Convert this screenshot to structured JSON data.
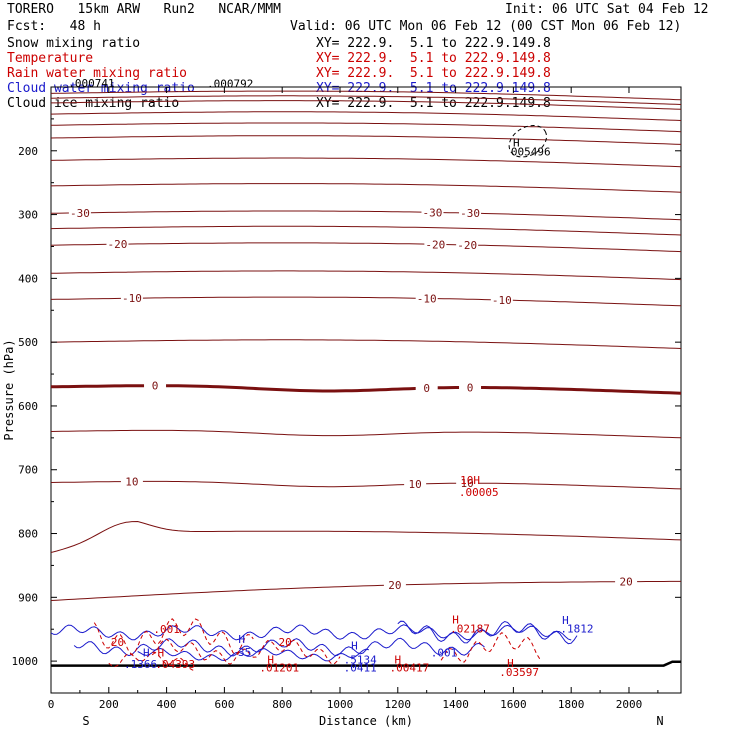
{
  "header": {
    "model": "TORERO   15km ARW   Run2   NCAR/MMM",
    "init": "Init: 06 UTC Sat 04 Feb 12",
    "fcst": "Fcst:   48 h",
    "valid": "Valid: 06 UTC Mon 06 Feb 12 (00 CST Mon 06 Feb 12)"
  },
  "legend": [
    {
      "label": "Snow mixing ratio",
      "xy": "XY= 222.9.  5.1 to 222.9.149.8",
      "color": "#000000"
    },
    {
      "label": "Temperature",
      "xy": "XY= 222.9.  5.1 to 222.9.149.8",
      "color": "#cc0000"
    },
    {
      "label": "Rain water mixing ratio",
      "xy": "XY= 222.9.  5.1 to 222.9.149.8",
      "color": "#cc0000"
    },
    {
      "label": "Cloud water mixing ratio",
      "xy": "XY= 222.9.  5.1 to 222.9.149.8",
      "color": "#1a1acc"
    },
    {
      "label": "Cloud ice mixing ratio",
      "xy": "XY= 222.9.  5.1 to 222.9.149.8",
      "color": "#000000"
    }
  ],
  "chart_data": {
    "type": "line",
    "xlabel": "Distance (km)",
    "ylabel": "Pressure (hPa)",
    "xlim": [
      0,
      2180
    ],
    "ylim": [
      1050,
      100
    ],
    "xticks": [
      0,
      200,
      400,
      600,
      800,
      1000,
      1200,
      1400,
      1600,
      1800,
      2000
    ],
    "yticks": [
      200,
      300,
      400,
      500,
      600,
      700,
      800,
      900,
      1000
    ],
    "x_end_labels": {
      "left": "S",
      "right": "N"
    },
    "temperature_isotherms": [
      {
        "value": -30,
        "p": 298,
        "labels_at": [
          100,
          1320,
          1450
        ]
      },
      {
        "value": -20,
        "p": 348,
        "labels_at": [
          230,
          1330,
          1440
        ]
      },
      {
        "value": -10,
        "p": 433,
        "labels_at": [
          280,
          1300,
          1560
        ]
      },
      {
        "value": 0,
        "p": 570,
        "labels_at": [
          360,
          1300,
          1450
        ]
      },
      {
        "value": 10,
        "p": 720,
        "labels_at": [
          280,
          1260,
          1440
        ]
      },
      {
        "value": 20,
        "p": 905,
        "labels_at": [
          1190,
          1990
        ]
      }
    ],
    "temperature_color": "#7a1010",
    "surface_pressure_hPa": 1007,
    "annotations": [
      {
        "text": ".000741",
        "x": 140,
        "p": 100,
        "color": "#000000"
      },
      {
        "text": ".000792",
        "x": 620,
        "p": 101,
        "color": "#000000"
      },
      {
        "text": "H",
        "x": 1610,
        "p": 193,
        "color": "#000000"
      },
      {
        "text": "005496",
        "x": 1660,
        "p": 207,
        "color": "#000000"
      },
      {
        "text": "10H",
        "x": 1450,
        "p": 722,
        "color": "#cc0000"
      },
      {
        "text": ".00005",
        "x": 1480,
        "p": 741,
        "color": "#cc0000"
      },
      {
        "text": ".001",
        "x": 400,
        "p": 956,
        "color": "#cc0000"
      },
      {
        "text": "20",
        "x": 230,
        "p": 976,
        "color": "#cc0000"
      },
      {
        "text": "20",
        "x": 810,
        "p": 976,
        "color": "#cc0000"
      },
      {
        "text": "H",
        "x": 330,
        "p": 993,
        "color": "#1a1acc"
      },
      {
        "text": "H",
        "x": 380,
        "p": 993,
        "color": "#cc0000"
      },
      {
        "text": ".1366",
        "x": 310,
        "p": 1011,
        "color": "#1a1acc"
      },
      {
        "text": ".04393",
        "x": 430,
        "p": 1011,
        "color": "#cc0000"
      },
      {
        "text": "H",
        "x": 660,
        "p": 972,
        "color": "#1a1acc"
      },
      {
        "text": "35",
        "x": 670,
        "p": 992,
        "color": "#1a1acc"
      },
      {
        "text": "H",
        "x": 760,
        "p": 1004,
        "color": "#cc0000"
      },
      {
        "text": ".01201",
        "x": 790,
        "p": 1016,
        "color": "#cc0000"
      },
      {
        "text": "H",
        "x": 1050,
        "p": 982,
        "color": "#1a1acc"
      },
      {
        "text": ".5134",
        "x": 1070,
        "p": 1004,
        "color": "#1a1acc"
      },
      {
        "text": ".0411",
        "x": 1070,
        "p": 1016,
        "color": "#1a1acc"
      },
      {
        "text": "H",
        "x": 1200,
        "p": 1004,
        "color": "#cc0000"
      },
      {
        "text": ".00417",
        "x": 1240,
        "p": 1016,
        "color": "#cc0000"
      },
      {
        "text": "H",
        "x": 1400,
        "p": 941,
        "color": "#cc0000"
      },
      {
        "text": ".02187",
        "x": 1450,
        "p": 955,
        "color": "#cc0000"
      },
      {
        "text": ".001",
        "x": 1360,
        "p": 993,
        "color": "#1a1acc"
      },
      {
        "text": "H",
        "x": 1780,
        "p": 942,
        "color": "#1a1acc"
      },
      {
        "text": ".1812",
        "x": 1820,
        "p": 955,
        "color": "#1a1acc"
      },
      {
        "text": "H",
        "x": 1590,
        "p": 1009,
        "color": "#cc0000"
      },
      {
        "text": ".03597",
        "x": 1620,
        "p": 1023,
        "color": "#cc0000"
      }
    ]
  }
}
